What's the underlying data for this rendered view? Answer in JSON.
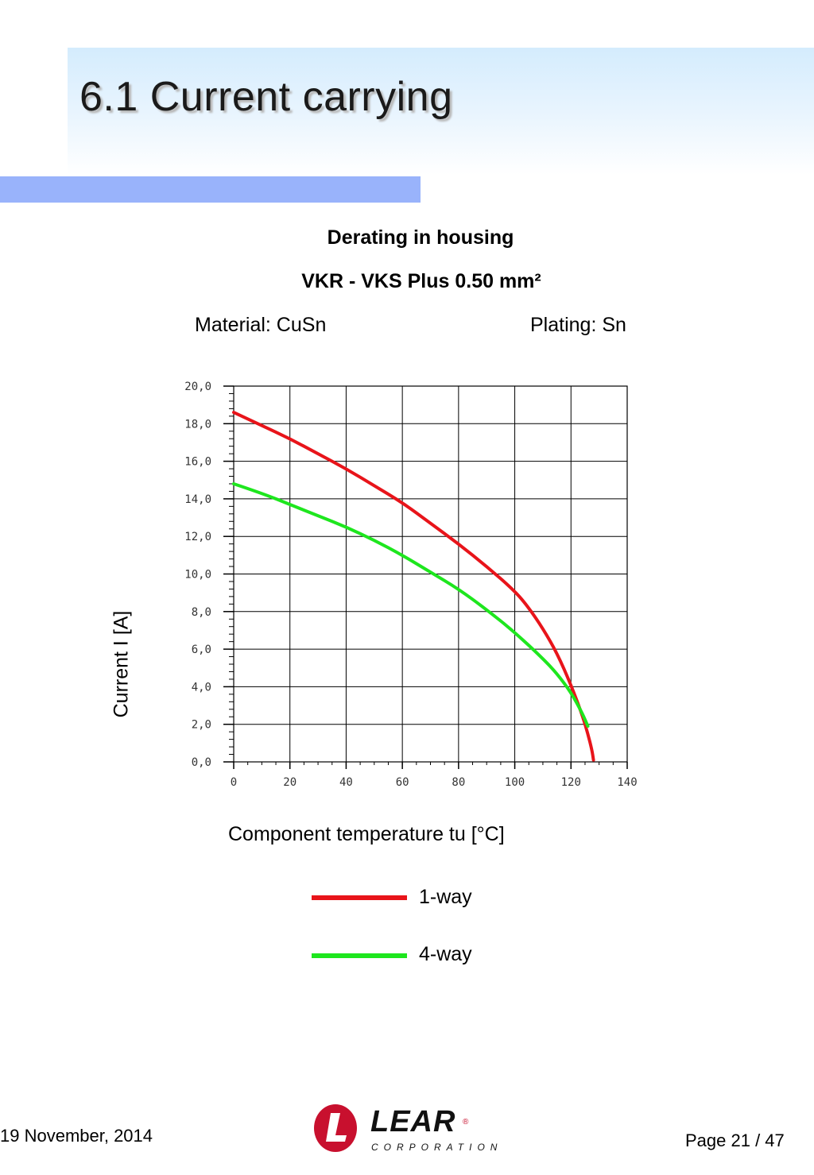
{
  "page": {
    "title": "6.1 Current carrying",
    "footer_date": "19 November, 2014",
    "footer_page": "Page 21 / 47"
  },
  "logo": {
    "name": "lear-corporation-logo",
    "word": "LEAR",
    "registered": "®",
    "subtitle": "CORPORATION",
    "brand_color": "#c8102e"
  },
  "chart_meta": {
    "material": "Material: CuSn",
    "plating": "Plating: Sn"
  },
  "chart_data": {
    "type": "line",
    "title": "Derating in housing",
    "subtitle": "VKR - VKS  Plus 0.50 mm²",
    "xlabel": "Component temperature tu [°C]",
    "ylabel": "Current I [A]",
    "xlim": [
      0,
      140
    ],
    "ylim": [
      0,
      20
    ],
    "x_ticks": [
      "0",
      "20",
      "40",
      "60",
      "80",
      "100",
      "120",
      "140"
    ],
    "y_ticks": [
      "0,0",
      "2,0",
      "4,0",
      "6,0",
      "8,0",
      "10,0",
      "12,0",
      "14,0",
      "16,0",
      "18,0",
      "20,0"
    ],
    "grid": true,
    "legend_position": "bottom",
    "series": [
      {
        "name": "1-way",
        "color": "#e8141a",
        "x": [
          0,
          10,
          20,
          30,
          40,
          50,
          60,
          70,
          80,
          90,
          100,
          105,
          110,
          115,
          120,
          124,
          126,
          127.5,
          128
        ],
        "y": [
          18.6,
          17.9,
          17.2,
          16.4,
          15.6,
          14.7,
          13.8,
          12.7,
          11.6,
          10.4,
          9.1,
          8.2,
          7.1,
          5.8,
          4.1,
          2.5,
          1.5,
          0.6,
          0.1
        ]
      },
      {
        "name": "4-way",
        "color": "#1ee61e",
        "x": [
          0,
          10,
          20,
          30,
          40,
          50,
          60,
          70,
          80,
          90,
          100,
          110,
          115,
          120,
          124,
          126
        ],
        "y": [
          14.8,
          14.3,
          13.7,
          13.1,
          12.5,
          11.8,
          11.0,
          10.1,
          9.2,
          8.1,
          6.9,
          5.5,
          4.7,
          3.7,
          2.6,
          1.9
        ]
      }
    ]
  }
}
